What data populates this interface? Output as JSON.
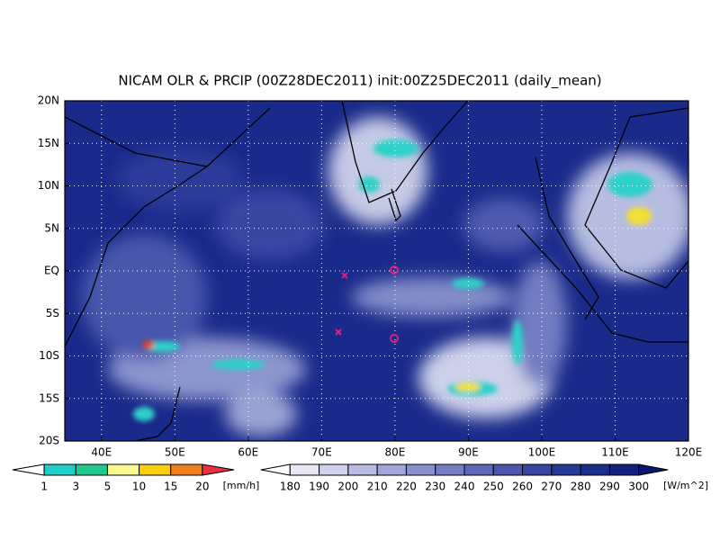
{
  "title": "NICAM OLR & PRCIP (00Z28DEC2011) init:00Z25DEC2011 (daily_mean)",
  "lat_labels": [
    "20N",
    "15N",
    "10N",
    "5N",
    "EQ",
    "5S",
    "10S",
    "15S",
    "20S"
  ],
  "lon_labels": [
    "40E",
    "50E",
    "60E",
    "70E",
    "80E",
    "90E",
    "100E",
    "110E",
    "120E"
  ],
  "precip_legend": {
    "labels": [
      "1",
      "3",
      "5",
      "10",
      "15",
      "20"
    ],
    "unit": "[mm/h]"
  },
  "olr_legend": {
    "labels": [
      "180",
      "190",
      "200",
      "210",
      "220",
      "230",
      "240",
      "250",
      "260",
      "270",
      "280",
      "290",
      "300"
    ],
    "unit": "[W/m^2]"
  }
}
